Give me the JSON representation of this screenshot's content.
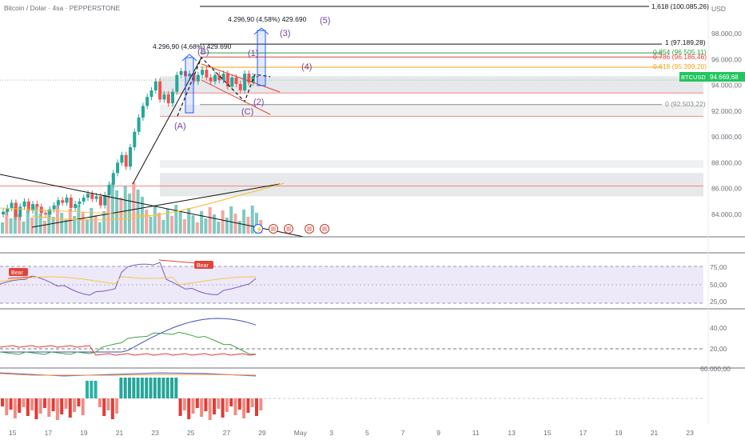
{
  "header": {
    "title": "Bitcoin / Dolar · 4sa · PEPPERSTONE",
    "currency": "USD"
  },
  "price_axis": {
    "ticks": [
      "98.000,00",
      "96.000,00",
      "94.000,00",
      "92.000,00",
      "90.000,00",
      "88.000,00",
      "86.000,00",
      "84.000,00"
    ],
    "price_tag": {
      "symbol": "BTCUSD",
      "value": "94.669,68",
      "color": "#22c55e"
    }
  },
  "time_axis": {
    "ticks": [
      "15",
      "17",
      "19",
      "21",
      "23",
      "25",
      "27",
      "29",
      "May",
      "3",
      "5",
      "7",
      "9",
      "11",
      "13",
      "15",
      "17",
      "19",
      "21",
      "23"
    ]
  },
  "fib_levels": [
    {
      "label": "1,618 (100.085,26)",
      "color": "#111111",
      "price": 100085.26
    },
    {
      "label": "1 (97.189,28)",
      "color": "#111111",
      "price": 97189.28
    },
    {
      "label": "0,854 (96.505,11)",
      "color": "#2e9e3a",
      "price": 96505.11
    },
    {
      "label": "0,786 (96.186,46)",
      "color": "#e0443a",
      "price": 96186.46
    },
    {
      "label": "0,618 (95.399,20)",
      "color": "#f0a21a",
      "price": 95399.2
    },
    {
      "label": "0 (92.503,22)",
      "color": "#888888",
      "price": 92503.22
    }
  ],
  "measure_labels": [
    {
      "text": "4.296,90 (4,58%) 429.690"
    },
    {
      "text": "4.296,90 (4,68%) 429.690"
    }
  ],
  "wave_labels": [
    "(5)",
    "(3)",
    "(4)",
    "(1)",
    "(2)",
    "(A)",
    "(B)",
    "(C)"
  ],
  "rsi": {
    "ticks": [
      "75,00",
      "50,00",
      "25,00"
    ],
    "bear_labels": [
      "Bear",
      "Bear"
    ]
  },
  "adx": {
    "ticks": [
      "40,00",
      "20,00"
    ]
  },
  "macd": {
    "ticks": [
      "60.000,00"
    ]
  },
  "chart_data": {
    "type": "candlestick",
    "title": "Bitcoin / Dolar · 4sa · PEPPERSTONE",
    "x_ticks": [
      "15",
      "17",
      "19",
      "21",
      "23",
      "25",
      "27",
      "29",
      "May",
      "3",
      "5",
      "7",
      "9",
      "11",
      "13",
      "15",
      "17",
      "19",
      "21",
      "23"
    ],
    "y_ticks": [
      98000,
      96000,
      94000,
      92000,
      90000,
      88000,
      86000,
      84000
    ],
    "ylim": [
      82500,
      100500
    ],
    "last_price": 94669.68,
    "approx_closes": [
      84200,
      84500,
      84900,
      83800,
      84600,
      85000,
      84300,
      84800,
      84600,
      84100,
      84000,
      84400,
      84700,
      85100,
      84900,
      85300,
      84500,
      84800,
      85000,
      85300,
      85600,
      85200,
      85400,
      84700,
      85500,
      86300,
      87200,
      88000,
      88600,
      87700,
      89200,
      90400,
      91500,
      92400,
      93100,
      93600,
      94300,
      92900,
      93300,
      92600,
      93500,
      94800,
      95100,
      94700,
      94900,
      94300,
      94800,
      95200,
      94600,
      94300,
      94800,
      94400,
      94900,
      93900,
      94600,
      94100,
      93600,
      94900,
      94200,
      94700,
      94669.68
    ]
  }
}
